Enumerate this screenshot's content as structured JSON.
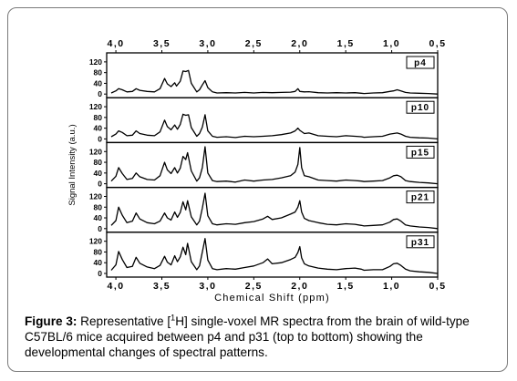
{
  "chart_data": {
    "type": "line",
    "xlabel": "Chemical Shift (ppm)",
    "ylabel": "Signal Intensity (a.u.)",
    "xlim": [
      4.1,
      0.5
    ],
    "ylim": [
      0,
      140
    ],
    "x_ticks": [
      "4,0",
      "3,5",
      "3,0",
      "2,5",
      "2,0",
      "1,5",
      "1,0",
      "0,5"
    ],
    "y_ticks": [
      "0",
      "40",
      "80",
      "120"
    ],
    "panels": [
      {
        "name": "p4",
        "y_ticks": [
          "0",
          "40",
          "80",
          "120"
        ],
        "points": [
          [
            4.05,
            4
          ],
          [
            4.0,
            12
          ],
          [
            3.97,
            20
          ],
          [
            3.93,
            16
          ],
          [
            3.88,
            8
          ],
          [
            3.82,
            10
          ],
          [
            3.78,
            20
          ],
          [
            3.74,
            14
          ],
          [
            3.66,
            10
          ],
          [
            3.58,
            8
          ],
          [
            3.52,
            20
          ],
          [
            3.47,
            58
          ],
          [
            3.44,
            38
          ],
          [
            3.4,
            28
          ],
          [
            3.36,
            42
          ],
          [
            3.34,
            30
          ],
          [
            3.3,
            48
          ],
          [
            3.27,
            86
          ],
          [
            3.24,
            84
          ],
          [
            3.21,
            88
          ],
          [
            3.18,
            40
          ],
          [
            3.12,
            8
          ],
          [
            3.09,
            16
          ],
          [
            3.06,
            34
          ],
          [
            3.03,
            50
          ],
          [
            3.0,
            24
          ],
          [
            2.95,
            8
          ],
          [
            2.9,
            4
          ],
          [
            2.8,
            5
          ],
          [
            2.7,
            4
          ],
          [
            2.6,
            6
          ],
          [
            2.5,
            4
          ],
          [
            2.4,
            6
          ],
          [
            2.3,
            5
          ],
          [
            2.2,
            6
          ],
          [
            2.1,
            7
          ],
          [
            2.05,
            10
          ],
          [
            2.02,
            20
          ],
          [
            2.0,
            10
          ],
          [
            1.95,
            8
          ],
          [
            1.9,
            9
          ],
          [
            1.8,
            5
          ],
          [
            1.7,
            4
          ],
          [
            1.6,
            5
          ],
          [
            1.5,
            4
          ],
          [
            1.4,
            5
          ],
          [
            1.33,
            3
          ],
          [
            1.3,
            2
          ],
          [
            1.2,
            4
          ],
          [
            1.1,
            5
          ],
          [
            1.02,
            10
          ],
          [
            0.98,
            12
          ],
          [
            0.94,
            16
          ],
          [
            0.9,
            12
          ],
          [
            0.85,
            6
          ],
          [
            0.8,
            4
          ],
          [
            0.7,
            3
          ],
          [
            0.6,
            2
          ],
          [
            0.5,
            0
          ]
        ]
      },
      {
        "name": "p10",
        "y_ticks": [
          "0",
          "40",
          "80",
          "120"
        ],
        "points": [
          [
            4.05,
            8
          ],
          [
            4.0,
            18
          ],
          [
            3.97,
            30
          ],
          [
            3.93,
            24
          ],
          [
            3.88,
            12
          ],
          [
            3.82,
            14
          ],
          [
            3.78,
            30
          ],
          [
            3.74,
            20
          ],
          [
            3.66,
            14
          ],
          [
            3.58,
            12
          ],
          [
            3.52,
            26
          ],
          [
            3.47,
            70
          ],
          [
            3.44,
            46
          ],
          [
            3.4,
            34
          ],
          [
            3.36,
            52
          ],
          [
            3.33,
            36
          ],
          [
            3.3,
            54
          ],
          [
            3.27,
            92
          ],
          [
            3.24,
            88
          ],
          [
            3.21,
            90
          ],
          [
            3.18,
            42
          ],
          [
            3.12,
            10
          ],
          [
            3.09,
            20
          ],
          [
            3.06,
            44
          ],
          [
            3.03,
            90
          ],
          [
            3.0,
            30
          ],
          [
            2.95,
            10
          ],
          [
            2.9,
            6
          ],
          [
            2.8,
            8
          ],
          [
            2.7,
            5
          ],
          [
            2.6,
            10
          ],
          [
            2.5,
            8
          ],
          [
            2.4,
            10
          ],
          [
            2.3,
            12
          ],
          [
            2.2,
            16
          ],
          [
            2.1,
            22
          ],
          [
            2.05,
            30
          ],
          [
            2.02,
            40
          ],
          [
            2.0,
            32
          ],
          [
            1.95,
            20
          ],
          [
            1.9,
            22
          ],
          [
            1.8,
            12
          ],
          [
            1.7,
            10
          ],
          [
            1.6,
            8
          ],
          [
            1.5,
            12
          ],
          [
            1.4,
            10
          ],
          [
            1.33,
            8
          ],
          [
            1.3,
            6
          ],
          [
            1.2,
            8
          ],
          [
            1.1,
            10
          ],
          [
            1.02,
            18
          ],
          [
            0.98,
            20
          ],
          [
            0.94,
            22
          ],
          [
            0.9,
            18
          ],
          [
            0.85,
            10
          ],
          [
            0.8,
            6
          ],
          [
            0.7,
            4
          ],
          [
            0.6,
            3
          ],
          [
            0.5,
            0
          ]
        ]
      },
      {
        "name": "p15",
        "y_ticks": [
          "0",
          "40",
          "80",
          "120"
        ],
        "points": [
          [
            4.05,
            10
          ],
          [
            4.0,
            28
          ],
          [
            3.97,
            60
          ],
          [
            3.93,
            38
          ],
          [
            3.88,
            16
          ],
          [
            3.82,
            20
          ],
          [
            3.78,
            40
          ],
          [
            3.74,
            26
          ],
          [
            3.66,
            16
          ],
          [
            3.58,
            14
          ],
          [
            3.52,
            30
          ],
          [
            3.47,
            80
          ],
          [
            3.44,
            52
          ],
          [
            3.4,
            38
          ],
          [
            3.36,
            60
          ],
          [
            3.33,
            40
          ],
          [
            3.3,
            58
          ],
          [
            3.27,
            102
          ],
          [
            3.24,
            90
          ],
          [
            3.22,
            116
          ],
          [
            3.18,
            48
          ],
          [
            3.12,
            10
          ],
          [
            3.09,
            22
          ],
          [
            3.06,
            60
          ],
          [
            3.03,
            138
          ],
          [
            3.0,
            40
          ],
          [
            2.95,
            12
          ],
          [
            2.9,
            8
          ],
          [
            2.8,
            10
          ],
          [
            2.7,
            6
          ],
          [
            2.6,
            14
          ],
          [
            2.5,
            10
          ],
          [
            2.4,
            14
          ],
          [
            2.3,
            16
          ],
          [
            2.2,
            22
          ],
          [
            2.1,
            30
          ],
          [
            2.05,
            44
          ],
          [
            2.02,
            72
          ],
          [
            2.0,
            135
          ],
          [
            1.98,
            60
          ],
          [
            1.95,
            30
          ],
          [
            1.9,
            26
          ],
          [
            1.8,
            14
          ],
          [
            1.7,
            12
          ],
          [
            1.6,
            10
          ],
          [
            1.5,
            14
          ],
          [
            1.4,
            12
          ],
          [
            1.33,
            10
          ],
          [
            1.3,
            8
          ],
          [
            1.2,
            10
          ],
          [
            1.1,
            12
          ],
          [
            1.02,
            22
          ],
          [
            0.98,
            30
          ],
          [
            0.94,
            32
          ],
          [
            0.9,
            26
          ],
          [
            0.85,
            12
          ],
          [
            0.8,
            8
          ],
          [
            0.7,
            5
          ],
          [
            0.6,
            3
          ],
          [
            0.5,
            0
          ]
        ]
      },
      {
        "name": "p21",
        "y_ticks": [
          "0",
          "40",
          "80",
          "120"
        ],
        "points": [
          [
            4.05,
            12
          ],
          [
            4.0,
            30
          ],
          [
            3.97,
            80
          ],
          [
            3.93,
            50
          ],
          [
            3.88,
            22
          ],
          [
            3.82,
            28
          ],
          [
            3.78,
            58
          ],
          [
            3.74,
            36
          ],
          [
            3.66,
            22
          ],
          [
            3.58,
            18
          ],
          [
            3.52,
            28
          ],
          [
            3.47,
            58
          ],
          [
            3.44,
            40
          ],
          [
            3.4,
            32
          ],
          [
            3.36,
            62
          ],
          [
            3.33,
            42
          ],
          [
            3.3,
            60
          ],
          [
            3.27,
            100
          ],
          [
            3.24,
            70
          ],
          [
            3.22,
            104
          ],
          [
            3.18,
            44
          ],
          [
            3.12,
            14
          ],
          [
            3.09,
            28
          ],
          [
            3.06,
            76
          ],
          [
            3.03,
            132
          ],
          [
            3.0,
            48
          ],
          [
            2.95,
            18
          ],
          [
            2.9,
            14
          ],
          [
            2.8,
            18
          ],
          [
            2.7,
            16
          ],
          [
            2.6,
            22
          ],
          [
            2.5,
            26
          ],
          [
            2.4,
            36
          ],
          [
            2.35,
            46
          ],
          [
            2.3,
            34
          ],
          [
            2.2,
            40
          ],
          [
            2.1,
            54
          ],
          [
            2.05,
            62
          ],
          [
            2.02,
            80
          ],
          [
            2.0,
            104
          ],
          [
            1.98,
            62
          ],
          [
            1.95,
            38
          ],
          [
            1.9,
            30
          ],
          [
            1.8,
            22
          ],
          [
            1.7,
            16
          ],
          [
            1.6,
            14
          ],
          [
            1.5,
            18
          ],
          [
            1.4,
            16
          ],
          [
            1.33,
            12
          ],
          [
            1.3,
            10
          ],
          [
            1.2,
            12
          ],
          [
            1.1,
            14
          ],
          [
            1.02,
            24
          ],
          [
            0.98,
            34
          ],
          [
            0.94,
            36
          ],
          [
            0.9,
            28
          ],
          [
            0.85,
            14
          ],
          [
            0.8,
            10
          ],
          [
            0.7,
            6
          ],
          [
            0.6,
            4
          ],
          [
            0.5,
            0
          ]
        ]
      },
      {
        "name": "p31",
        "y_ticks": [
          "0",
          "40",
          "80",
          "120"
        ],
        "points": [
          [
            4.05,
            12
          ],
          [
            4.0,
            32
          ],
          [
            3.97,
            82
          ],
          [
            3.93,
            52
          ],
          [
            3.88,
            22
          ],
          [
            3.82,
            26
          ],
          [
            3.78,
            60
          ],
          [
            3.74,
            38
          ],
          [
            3.66,
            24
          ],
          [
            3.58,
            18
          ],
          [
            3.52,
            30
          ],
          [
            3.47,
            64
          ],
          [
            3.44,
            42
          ],
          [
            3.4,
            32
          ],
          [
            3.36,
            66
          ],
          [
            3.33,
            44
          ],
          [
            3.3,
            62
          ],
          [
            3.27,
            98
          ],
          [
            3.24,
            70
          ],
          [
            3.22,
            112
          ],
          [
            3.18,
            44
          ],
          [
            3.12,
            14
          ],
          [
            3.09,
            28
          ],
          [
            3.06,
            80
          ],
          [
            3.03,
            130
          ],
          [
            3.0,
            50
          ],
          [
            2.95,
            18
          ],
          [
            2.9,
            14
          ],
          [
            2.8,
            18
          ],
          [
            2.7,
            16
          ],
          [
            2.6,
            22
          ],
          [
            2.5,
            28
          ],
          [
            2.4,
            40
          ],
          [
            2.35,
            54
          ],
          [
            2.3,
            36
          ],
          [
            2.2,
            40
          ],
          [
            2.1,
            52
          ],
          [
            2.05,
            60
          ],
          [
            2.02,
            78
          ],
          [
            2.0,
            100
          ],
          [
            1.98,
            58
          ],
          [
            1.95,
            36
          ],
          [
            1.9,
            28
          ],
          [
            1.8,
            20
          ],
          [
            1.7,
            16
          ],
          [
            1.6,
            14
          ],
          [
            1.5,
            18
          ],
          [
            1.4,
            20
          ],
          [
            1.33,
            16
          ],
          [
            1.3,
            12
          ],
          [
            1.2,
            14
          ],
          [
            1.1,
            14
          ],
          [
            1.02,
            26
          ],
          [
            0.98,
            36
          ],
          [
            0.94,
            38
          ],
          [
            0.9,
            30
          ],
          [
            0.85,
            16
          ],
          [
            0.8,
            10
          ],
          [
            0.7,
            6
          ],
          [
            0.6,
            4
          ],
          [
            0.5,
            0
          ]
        ]
      }
    ]
  },
  "caption": {
    "lead": "Figure 3:",
    "text_before_sup": " Representative [",
    "sup": "1",
    "text_after_sup": "H] single-voxel MR spectra from the brain of wild-type C57BL/6 mice acquired between p4 and p31 (top to bottom) showing the developmental changes of spectral patterns."
  },
  "colors": {
    "line": "#000000",
    "frame": "#7a7a7a",
    "background": "#ffffff"
  }
}
